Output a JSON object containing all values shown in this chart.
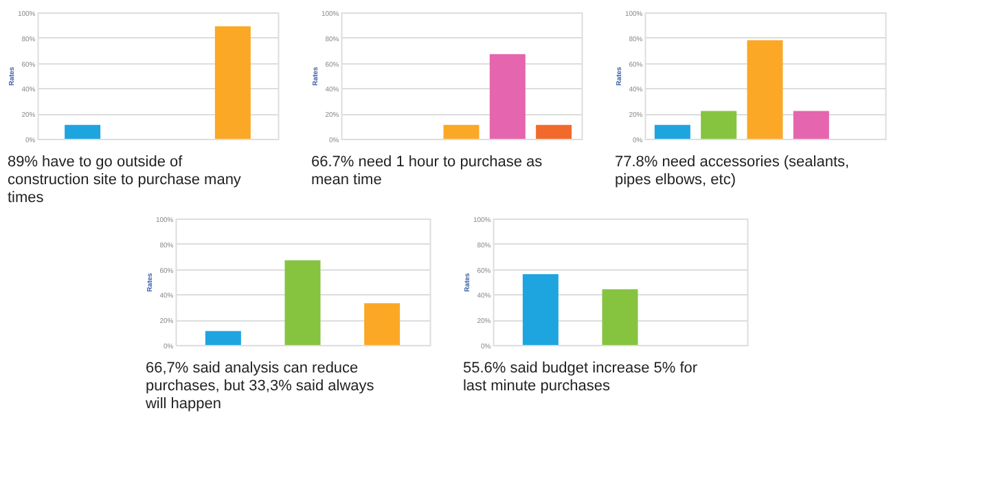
{
  "chart_data": [
    {
      "type": "bar",
      "title": "89% have to go outside of construction site to purchase many times",
      "ylabel": "Rates",
      "categories": [
        null,
        null,
        null
      ],
      "values": [
        11,
        null,
        89
      ],
      "colors": [
        "#1ea5e0",
        "#fba826",
        "#fba826"
      ],
      "ylim": [
        0,
        100
      ],
      "yticks": [
        {
          "value": 0,
          "label": "0%"
        },
        {
          "value": 20,
          "label": "20%"
        },
        {
          "value": 40,
          "label": "40%"
        },
        {
          "value": 60,
          "label": "60%"
        },
        {
          "value": 80,
          "label": "80%"
        },
        {
          "value": 100,
          "label": "100%"
        }
      ],
      "grid": "y",
      "tick_labels": "y",
      "legend": false
    },
    {
      "type": "bar",
      "title": "66.7% need 1 hour to purchase as mean time",
      "ylabel": "Rates",
      "categories": [
        null,
        null,
        null,
        null,
        null
      ],
      "values": [
        null,
        null,
        11,
        67,
        11
      ],
      "colors": [
        "#1ea5e0",
        "#86c440",
        "#fba826",
        "#e565ae",
        "#f26a2b"
      ],
      "ylim": [
        0,
        100
      ],
      "yticks": [
        {
          "value": 0,
          "label": "0%"
        },
        {
          "value": 20,
          "label": "20%"
        },
        {
          "value": 40,
          "label": "40%"
        },
        {
          "value": 60,
          "label": "60%"
        },
        {
          "value": 80,
          "label": "80%"
        },
        {
          "value": 100,
          "label": "100%"
        }
      ],
      "grid": "y",
      "tick_labels": "y",
      "legend": false
    },
    {
      "type": "bar",
      "title": "77.8% need accessories (sealants, pipes elbows, etc)",
      "ylabel": "Rates",
      "categories": [
        null,
        null,
        null,
        null,
        null
      ],
      "values": [
        11,
        22,
        78,
        22,
        null
      ],
      "colors": [
        "#1ea5e0",
        "#86c440",
        "#fba826",
        "#e565ae",
        "#f26a2b"
      ],
      "ylim": [
        0,
        100
      ],
      "yticks": [
        {
          "value": 0,
          "label": "0%"
        },
        {
          "value": 20,
          "label": "20%"
        },
        {
          "value": 40,
          "label": "40%"
        },
        {
          "value": 60,
          "label": "60%"
        },
        {
          "value": 80,
          "label": "80%"
        },
        {
          "value": 100,
          "label": "100%"
        }
      ],
      "grid": "y",
      "tick_labels": "y",
      "legend": false
    },
    {
      "type": "bar",
      "title": "66,7% said analysis can reduce purchases, but 33,3% said always will happen",
      "ylabel": "Rates",
      "categories": [
        null,
        null,
        null
      ],
      "values": [
        11,
        67,
        33
      ],
      "colors": [
        "#1ea5e0",
        "#86c440",
        "#fba826"
      ],
      "ylim": [
        0,
        100
      ],
      "yticks": [
        {
          "value": 0,
          "label": "0%"
        },
        {
          "value": 20,
          "label": "20%"
        },
        {
          "value": 40,
          "label": "40%"
        },
        {
          "value": 60,
          "label": "60%"
        },
        {
          "value": 80,
          "label": "80%"
        },
        {
          "value": 100,
          "label": "100%"
        }
      ],
      "grid": "y",
      "tick_labels": "y",
      "legend": false
    },
    {
      "type": "bar",
      "title": "55.6% said budget increase 5% for last minute purchases",
      "ylabel": "Rates",
      "categories": [
        null,
        null,
        null
      ],
      "values": [
        56,
        44,
        null
      ],
      "colors": [
        "#1ea5e0",
        "#86c440",
        "#fba826"
      ],
      "ylim": [
        0,
        100
      ],
      "yticks": [
        {
          "value": 0,
          "label": "0%"
        },
        {
          "value": 20,
          "label": "20%"
        },
        {
          "value": 40,
          "label": "40%"
        },
        {
          "value": 60,
          "label": "60%"
        },
        {
          "value": 80,
          "label": "80%"
        },
        {
          "value": 100,
          "label": "100%"
        }
      ],
      "grid": "y",
      "tick_labels": "y",
      "legend": false
    }
  ]
}
